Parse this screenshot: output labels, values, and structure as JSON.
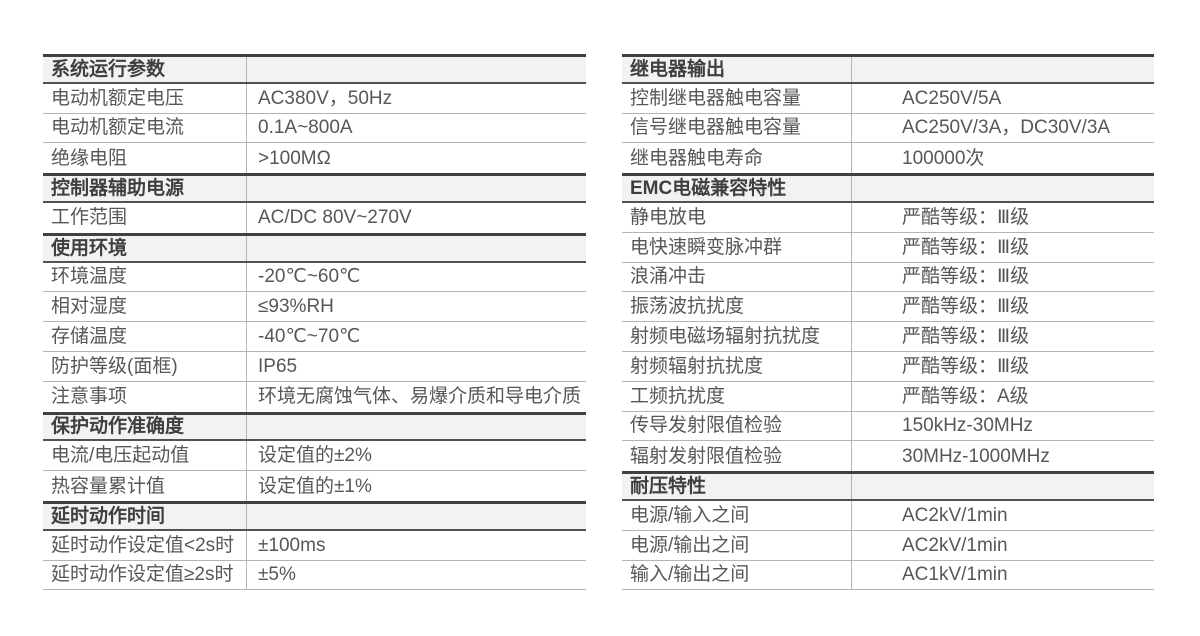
{
  "colors": {
    "section_rule_top": "#404143",
    "section_rule_bottom": "#515254",
    "row_separator": "#b3b4b6",
    "section_bg": "#f2f2f3",
    "section_text": "#3e3f41",
    "body_text": "#56575a",
    "page_bg": "#ffffff"
  },
  "tables": [
    {
      "id": "left",
      "sections": [
        {
          "header": "系统运行参数",
          "rows": [
            {
              "label": "电动机额定电压",
              "value": "AC380V，50Hz"
            },
            {
              "label": "电动机额定电流",
              "value": "0.1A~800A"
            },
            {
              "label": "绝缘电阻",
              "value": ">100MΩ"
            }
          ]
        },
        {
          "header": "控制器辅助电源",
          "rows": [
            {
              "label": "工作范围",
              "value": "AC/DC 80V~270V"
            }
          ]
        },
        {
          "header": "使用环境",
          "rows": [
            {
              "label": "环境温度",
              "value": "-20℃~60℃"
            },
            {
              "label": "相对湿度",
              "value": "≤93%RH"
            },
            {
              "label": "存储温度",
              "value": "-40℃~70℃"
            },
            {
              "label": "防护等级(面框)",
              "value": "IP65"
            },
            {
              "label": "注意事项",
              "value": "环境无腐蚀气体、易爆介质和导电介质"
            }
          ]
        },
        {
          "header": "保护动作准确度",
          "rows": [
            {
              "label": "电流/电压起动值",
              "value": "设定值的±2%"
            },
            {
              "label": "热容量累计值",
              "value": "设定值的±1%"
            }
          ]
        },
        {
          "header": "延时动作时间",
          "rows": [
            {
              "label": "延时动作设定值<2s时",
              "value": "±100ms"
            },
            {
              "label": "延时动作设定值≥2s时",
              "value": "±5%"
            }
          ]
        }
      ]
    },
    {
      "id": "right",
      "sections": [
        {
          "header": "继电器输出",
          "rows": [
            {
              "label": "控制继电器触电容量",
              "value": "AC250V/5A"
            },
            {
              "label": "信号继电器触电容量",
              "value": "AC250V/3A，DC30V/3A"
            },
            {
              "label": "继电器触电寿命",
              "value": "100000次"
            }
          ]
        },
        {
          "header": "EMC电磁兼容特性",
          "rows": [
            {
              "label": "静电放电",
              "value": "严酷等级：Ⅲ级"
            },
            {
              "label": "电快速瞬变脉冲群",
              "value": "严酷等级：Ⅲ级"
            },
            {
              "label": "浪涌冲击",
              "value": "严酷等级：Ⅲ级"
            },
            {
              "label": "振荡波抗扰度",
              "value": "严酷等级：Ⅲ级"
            },
            {
              "label": "射频电磁场辐射抗扰度",
              "value": "严酷等级：Ⅲ级"
            },
            {
              "label": "射频辐射抗扰度",
              "value": "严酷等级：Ⅲ级"
            },
            {
              "label": "工频抗扰度",
              "value": "严酷等级：A级"
            },
            {
              "label": "传导发射限值检验",
              "value": "150kHz-30MHz"
            },
            {
              "label": "辐射发射限值检验",
              "value": "30MHz-1000MHz"
            }
          ]
        },
        {
          "header": "耐压特性",
          "rows": [
            {
              "label": "电源/输入之间",
              "value": "AC2kV/1min"
            },
            {
              "label": "电源/输出之间",
              "value": "AC2kV/1min"
            },
            {
              "label": "输入/输出之间",
              "value": "AC1kV/1min"
            }
          ]
        }
      ]
    }
  ]
}
